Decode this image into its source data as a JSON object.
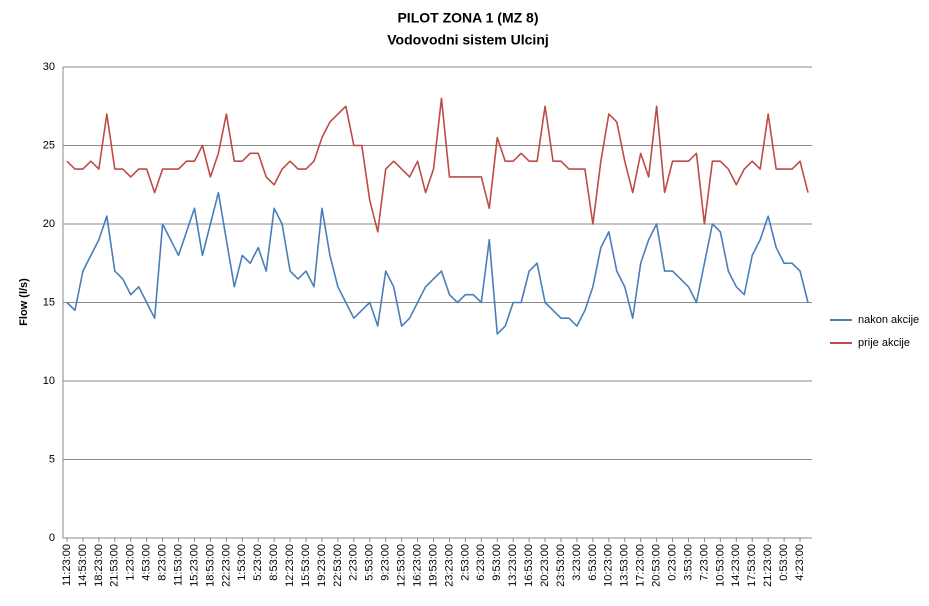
{
  "chart_data": {
    "type": "line",
    "title": "PILOT ZONA 1 (MZ 8)",
    "subtitle": "Vodovodni sistem Ulcinj",
    "ylabel": "Flow (l/s)",
    "categories": [
      "11:23:00",
      null,
      "14:53:00",
      null,
      "18:23:00",
      null,
      "21:53:00",
      null,
      "1:23:00",
      null,
      "4:53:00",
      null,
      "8:23:00",
      null,
      "11:53:00",
      null,
      "15:23:00",
      null,
      "18:53:00",
      null,
      "22:23:00",
      null,
      "1:53:00",
      null,
      "5:23:00",
      null,
      "8:53:00",
      null,
      "12:23:00",
      null,
      "15:53:00",
      null,
      "19:23:00",
      null,
      "22:53:00",
      null,
      "2:23:00",
      null,
      "5:53:00",
      null,
      "9:23:00",
      null,
      "12:53:00",
      null,
      "16:23:00",
      null,
      "19:53:00",
      null,
      "23:23:00",
      null,
      "2:53:00",
      null,
      "6:23:00",
      null,
      "9:53:00",
      null,
      "13:23:00",
      null,
      "16:53:00",
      null,
      "20:23:00",
      null,
      "23:53:00",
      null,
      "3:23:00",
      null,
      "6:53:00",
      null,
      "10:23:00",
      null,
      "13:53:00",
      null,
      "17:23:00",
      null,
      "20:53:00",
      null,
      "0:23:00",
      null,
      "3:53:00",
      null,
      "7:23:00",
      null,
      "10:53:00",
      null,
      "14:23:00",
      null,
      "17:53:00",
      null,
      "21:23:00",
      null,
      "0:53:00",
      null,
      "4:23:00",
      null
    ],
    "series": [
      {
        "name": "nakon akcije",
        "color": "#4a7ebb",
        "values": [
          15,
          14.5,
          17,
          18,
          19,
          20.5,
          17,
          16.5,
          15.5,
          16,
          15,
          14,
          20,
          19,
          18,
          19.5,
          21,
          18,
          20,
          22,
          19,
          16,
          18,
          17.5,
          18.5,
          17,
          21,
          20,
          17,
          16.5,
          17,
          16,
          21,
          18,
          16,
          15,
          14,
          14.5,
          15,
          13.5,
          17,
          16,
          13.5,
          14,
          15,
          16,
          16.5,
          17,
          15.5,
          15,
          15.5,
          15.5,
          15,
          19,
          13,
          13.5,
          15,
          15,
          17,
          17.5,
          15,
          14.5,
          14,
          14,
          13.5,
          14.5,
          16,
          18.5,
          19.5,
          17,
          16,
          14,
          17.5,
          19,
          20,
          17,
          17,
          16.5,
          16,
          15,
          17.5,
          20,
          19.5,
          17,
          16,
          15.5,
          18,
          19,
          20.5,
          18.5,
          17.5,
          17.5,
          17,
          15
        ]
      },
      {
        "name": "prije akcije",
        "color": "#be4b48",
        "values": [
          24,
          23.5,
          23.5,
          24,
          23.5,
          27,
          23.5,
          23.5,
          23,
          23.5,
          23.5,
          22,
          23.5,
          23.5,
          23.5,
          24,
          24,
          25,
          23,
          24.5,
          27,
          24,
          24,
          24.5,
          24.5,
          23,
          22.5,
          23.5,
          24,
          23.5,
          23.5,
          24,
          25.5,
          26.5,
          27,
          27.5,
          25,
          25,
          21.5,
          19.5,
          23.5,
          24,
          23.5,
          23,
          24,
          22,
          23.5,
          28,
          23,
          23,
          23,
          23,
          23,
          21,
          25.5,
          24,
          24,
          24.5,
          24,
          24,
          27.5,
          24,
          24,
          23.5,
          23.5,
          23.5,
          20,
          24,
          27,
          26.5,
          24,
          22,
          24.5,
          23,
          27.5,
          22,
          24,
          24,
          24,
          24.5,
          20,
          24,
          24,
          23.5,
          22.5,
          23.5,
          24,
          23.5,
          27,
          23.5,
          23.5,
          23.5,
          24,
          22
        ]
      }
    ],
    "ylim": [
      0,
      30
    ],
    "yticks": [
      0,
      5,
      10,
      15,
      20,
      25,
      30
    ],
    "grid": true,
    "legend": "right"
  }
}
